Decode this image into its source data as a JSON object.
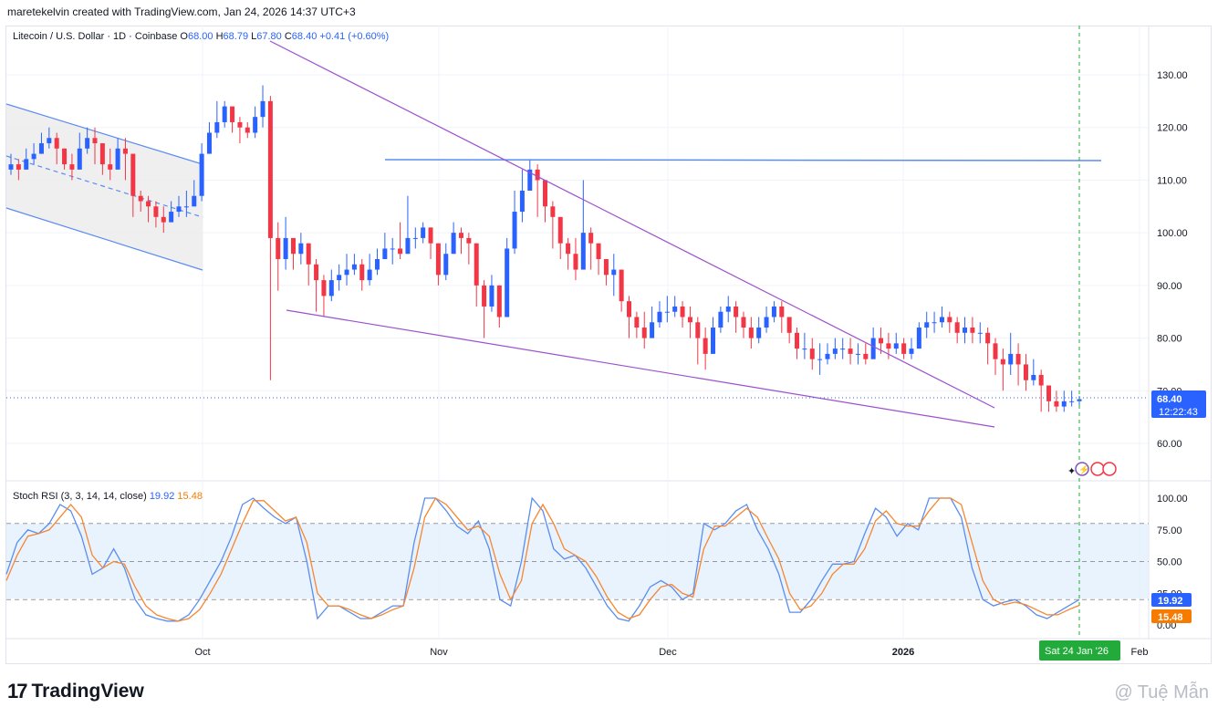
{
  "header": {
    "text": "maretekelvin created with TradingView.com, Jan 24, 2026 14:37 UTC+3"
  },
  "legend": {
    "symbol": "Litecoin / U.S. Dollar · 1D · Coinbase",
    "o_label": "O",
    "o": "68.00",
    "h_label": "H",
    "h": "68.79",
    "l_label": "L",
    "l": "67.80",
    "c_label": "C",
    "c": "68.40",
    "change": "+0.41 (+0.60%)"
  },
  "stoch_legend": {
    "label": "Stoch RSI (3, 3, 14, 14, close)",
    "k": "19.92",
    "d": "15.48"
  },
  "price_badge": {
    "price": "68.40",
    "countdown": "12:22:43"
  },
  "stoch_badges": {
    "k": "19.92",
    "d": "15.48"
  },
  "date_badge": "Sat 24 Jan '26",
  "footer": {
    "logo_text": "TradingView",
    "watermark": "@ Tuệ Mẫn"
  },
  "colors": {
    "up": "#2962ff",
    "down": "#f23645",
    "trend": "#9c4fce",
    "channel": "#5b8def",
    "k_line": "#5b8def",
    "d_line": "#f7862f"
  },
  "chart_data": [
    {
      "type": "candlestick",
      "title": "Litecoin / U.S. Dollar · 1D · Coinbase",
      "y_ticks": [
        "130.00",
        "120.00",
        "110.00",
        "100.00",
        "90.00",
        "80.00",
        "70.00",
        "60.00"
      ],
      "x_ticks": [
        "Oct",
        "Nov",
        "Dec",
        "2026",
        "Feb"
      ],
      "ylim": [
        54,
        139
      ],
      "grid": true,
      "last_price": 68.4,
      "horizontal_level": 113.5,
      "close": [
        113,
        112,
        114,
        115,
        117,
        118,
        116,
        113,
        112,
        116,
        118,
        117,
        113,
        112,
        116,
        115,
        107,
        106,
        105,
        103,
        102,
        104,
        105,
        105,
        107,
        115,
        119,
        121,
        124,
        121,
        120,
        119,
        122,
        125,
        99,
        95,
        99,
        96,
        98,
        94,
        91,
        88,
        91,
        92,
        93,
        94,
        91,
        93,
        95,
        97,
        97,
        96,
        99,
        99,
        101,
        98,
        92,
        96,
        100,
        99,
        98,
        90,
        86,
        90,
        84,
        97,
        104,
        108,
        112,
        110,
        105,
        103,
        98,
        96,
        93,
        100,
        98,
        95,
        92,
        93,
        87,
        84,
        82,
        80,
        83,
        85,
        85,
        86,
        84,
        83,
        80,
        77,
        82,
        85,
        86,
        84,
        82,
        80,
        82,
        84,
        86,
        84,
        81,
        78,
        78,
        76,
        76,
        77,
        78,
        78,
        77,
        77,
        76,
        80,
        79,
        78,
        79,
        77,
        78,
        82,
        83,
        83,
        84,
        83,
        81,
        82,
        81,
        81,
        79,
        76,
        75,
        77,
        75,
        72,
        73,
        71,
        68,
        67,
        68,
        68,
        68.4
      ],
      "high": [
        115,
        114,
        116,
        117,
        119,
        120,
        119,
        116,
        115,
        119,
        120,
        120,
        117,
        116,
        118,
        118,
        111,
        108,
        107,
        106,
        105,
        106,
        107,
        108,
        110,
        117,
        121,
        125,
        125,
        124,
        122,
        121,
        124,
        128,
        126,
        102,
        103,
        99,
        100,
        98,
        95,
        92,
        93,
        94,
        96,
        96,
        95,
        96,
        97,
        100,
        99,
        102,
        107,
        101,
        102,
        101,
        98,
        98,
        102,
        101,
        100,
        96,
        91,
        92,
        90,
        99,
        108,
        112,
        114,
        113,
        109,
        106,
        103,
        99,
        99,
        110,
        101,
        98,
        95,
        96,
        93,
        88,
        85,
        85,
        86,
        87,
        88,
        88,
        87,
        86,
        84,
        82,
        84,
        86,
        88,
        87,
        85,
        84,
        84,
        86,
        87,
        87,
        84,
        82,
        81,
        80,
        79,
        79,
        80,
        80,
        80,
        79,
        79,
        82,
        82,
        81,
        81,
        80,
        80,
        83,
        85,
        85,
        86,
        85,
        84,
        84,
        84,
        83,
        82,
        80,
        78,
        81,
        79,
        77,
        76,
        74,
        71,
        70,
        70,
        70,
        69
      ],
      "low": [
        111,
        110,
        112,
        113,
        115,
        116,
        113,
        112,
        110,
        113,
        115,
        113,
        111,
        110,
        113,
        110,
        103,
        104,
        102,
        101,
        100,
        102,
        103,
        103,
        105,
        106,
        115,
        118,
        120,
        119,
        117,
        118,
        118,
        120,
        72,
        89,
        93,
        93,
        94,
        90,
        85,
        84,
        87,
        89,
        90,
        92,
        89,
        90,
        92,
        95,
        94,
        95,
        97,
        97,
        98,
        95,
        90,
        91,
        96,
        96,
        94,
        86,
        80,
        85,
        82,
        86,
        96,
        102,
        108,
        103,
        102,
        97,
        95,
        93,
        91,
        93,
        93,
        92,
        90,
        88,
        85,
        80,
        80,
        78,
        80,
        82,
        83,
        84,
        82,
        80,
        75,
        74,
        78,
        81,
        83,
        81,
        80,
        78,
        79,
        81,
        83,
        81,
        79,
        76,
        76,
        74,
        73,
        75,
        76,
        76,
        75,
        75,
        75,
        77,
        77,
        76,
        77,
        76,
        76,
        78,
        80,
        81,
        82,
        81,
        79,
        79,
        79,
        79,
        75,
        73,
        70,
        73,
        71,
        70,
        71,
        66,
        66,
        66,
        66,
        67,
        67
      ]
    },
    {
      "type": "line",
      "title": "Stoch RSI (3, 3, 14, 14, close)",
      "y_ticks": [
        "100.00",
        "75.00",
        "50.00",
        "25.00",
        "0.00"
      ],
      "ylim": [
        0,
        100
      ],
      "bands": [
        20,
        80
      ],
      "series": [
        {
          "name": "K",
          "values": [
            40,
            65,
            75,
            72,
            80,
            95,
            90,
            70,
            40,
            45,
            60,
            45,
            20,
            8,
            5,
            3,
            3,
            8,
            20,
            35,
            50,
            70,
            95,
            100,
            92,
            85,
            80,
            85,
            50,
            5,
            15,
            15,
            10,
            5,
            5,
            10,
            15,
            15,
            65,
            100,
            100,
            90,
            78,
            72,
            82,
            60,
            20,
            15,
            50,
            100,
            90,
            60,
            52,
            55,
            45,
            30,
            15,
            5,
            3,
            15,
            30,
            35,
            30,
            20,
            25,
            80,
            75,
            80,
            90,
            95,
            75,
            60,
            40,
            10,
            10,
            20,
            35,
            48,
            48,
            50,
            72,
            92,
            85,
            70,
            80,
            75,
            100,
            100,
            100,
            85,
            45,
            20,
            15,
            18,
            20,
            15,
            8,
            5,
            10,
            15,
            20
          ]
        },
        {
          "name": "D",
          "values": [
            35,
            55,
            70,
            72,
            75,
            85,
            95,
            85,
            55,
            45,
            50,
            48,
            30,
            15,
            8,
            5,
            3,
            5,
            12,
            25,
            40,
            60,
            80,
            98,
            98,
            90,
            82,
            85,
            65,
            25,
            15,
            15,
            12,
            8,
            5,
            8,
            12,
            15,
            45,
            85,
            100,
            95,
            85,
            75,
            78,
            70,
            40,
            20,
            35,
            80,
            95,
            80,
            60,
            55,
            50,
            38,
            22,
            10,
            5,
            8,
            20,
            30,
            32,
            25,
            22,
            60,
            78,
            78,
            85,
            92,
            85,
            68,
            52,
            25,
            12,
            15,
            25,
            40,
            48,
            48,
            60,
            82,
            90,
            80,
            78,
            78,
            90,
            100,
            100,
            95,
            65,
            35,
            20,
            16,
            18,
            16,
            12,
            8,
            8,
            12,
            15.5
          ]
        }
      ]
    }
  ]
}
